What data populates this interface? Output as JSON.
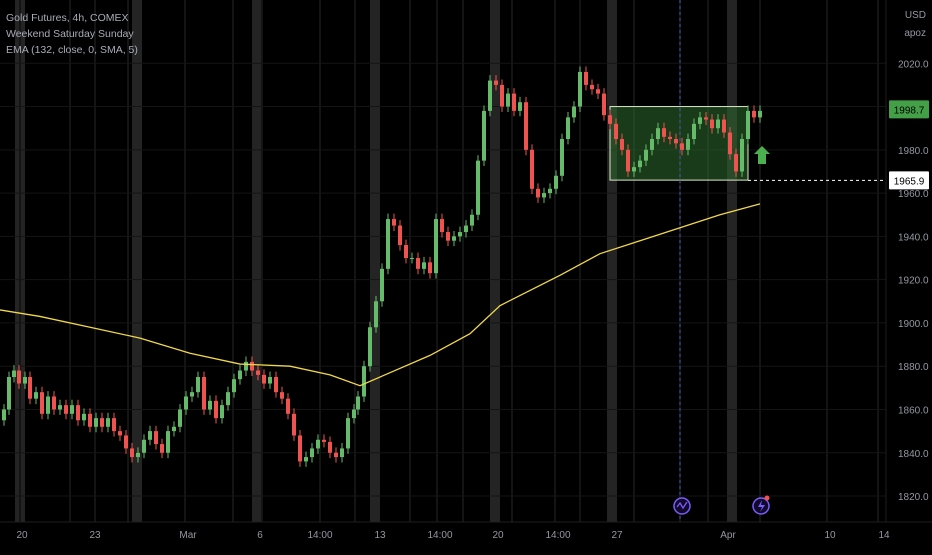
{
  "legend": {
    "symbol_line": "Gold Futures, 4h, COMEX",
    "indicator_1": "Weekend Saturday Sunday",
    "indicator_2": "EMA (132, close, 0, SMA, 5)"
  },
  "corner": {
    "currency": "USD",
    "scale_mode": "apoz"
  },
  "colors": {
    "background": "#000000",
    "up_candle": "#66bb6a",
    "down_candle": "#ef5350",
    "ema_line": "#f0d84a",
    "weekend_band": "#2a2a2a",
    "grid": "#141414",
    "box_fill": "#2e6b2e",
    "box_border": "#d8e8c8",
    "arrow": "#4caf50",
    "event_icon": "#7b5cff",
    "axis_text": "#9598a1"
  },
  "price_labels": {
    "current": "1998.7",
    "reference": "1965.9"
  },
  "icons": [
    "up-arrow-icon",
    "dividend-event-icon",
    "earnings-event-icon"
  ],
  "chart_data": {
    "type": "candlestick",
    "title": "Gold Futures, 4h, COMEX",
    "y_axis": {
      "ticks": [
        1820,
        1840,
        1860,
        1880,
        1900,
        1920,
        1940,
        1960,
        1980,
        2000,
        2020
      ],
      "tick_labels": [
        "1820.0",
        "1840.0",
        "1860.0",
        "1880.0",
        "1900.0",
        "1920.0",
        "1940.0",
        "1960.0",
        "1980.0",
        "2000.0",
        "2020.0"
      ],
      "range": [
        1808,
        2040
      ],
      "side": "right"
    },
    "x_axis": {
      "tick_labels": [
        "20",
        "23",
        "Mar",
        "6",
        "14:00",
        "13",
        "14:00",
        "20",
        "14:00",
        "27",
        "Apr",
        "10",
        "14"
      ],
      "grid": true
    },
    "price_series": [
      [
        0,
        1855
      ],
      [
        4,
        1860
      ],
      [
        9,
        1875
      ],
      [
        14,
        1878
      ],
      [
        19,
        1872
      ],
      [
        25,
        1875
      ],
      [
        30,
        1865
      ],
      [
        36,
        1868
      ],
      [
        42,
        1858
      ],
      [
        48,
        1866
      ],
      [
        54,
        1860
      ],
      [
        60,
        1862
      ],
      [
        66,
        1858
      ],
      [
        72,
        1862
      ],
      [
        78,
        1855
      ],
      [
        84,
        1858
      ],
      [
        90,
        1852
      ],
      [
        96,
        1856
      ],
      [
        102,
        1852
      ],
      [
        108,
        1856
      ],
      [
        114,
        1850
      ],
      [
        120,
        1848
      ],
      [
        126,
        1842
      ],
      [
        132,
        1838
      ],
      [
        138,
        1840
      ],
      [
        144,
        1846
      ],
      [
        150,
        1850
      ],
      [
        156,
        1844
      ],
      [
        162,
        1840
      ],
      [
        168,
        1850
      ],
      [
        174,
        1852
      ],
      [
        180,
        1860
      ],
      [
        186,
        1866
      ],
      [
        192,
        1868
      ],
      [
        198,
        1875
      ],
      [
        204,
        1860
      ],
      [
        210,
        1864
      ],
      [
        216,
        1856
      ],
      [
        222,
        1862
      ],
      [
        228,
        1868
      ],
      [
        234,
        1874
      ],
      [
        240,
        1878
      ],
      [
        246,
        1882
      ],
      [
        252,
        1878
      ],
      [
        258,
        1876
      ],
      [
        264,
        1872
      ],
      [
        270,
        1875
      ],
      [
        276,
        1868
      ],
      [
        282,
        1865
      ],
      [
        288,
        1858
      ],
      [
        294,
        1848
      ],
      [
        300,
        1836
      ],
      [
        306,
        1838
      ],
      [
        312,
        1842
      ],
      [
        318,
        1846
      ],
      [
        324,
        1845
      ],
      [
        330,
        1840
      ],
      [
        336,
        1838
      ],
      [
        342,
        1842
      ],
      [
        348,
        1856
      ],
      [
        354,
        1860
      ],
      [
        358,
        1866
      ],
      [
        364,
        1880
      ],
      [
        370,
        1898
      ],
      [
        376,
        1910
      ],
      [
        382,
        1925
      ],
      [
        388,
        1948
      ],
      [
        394,
        1945
      ],
      [
        400,
        1936
      ],
      [
        406,
        1930
      ],
      [
        412,
        1930
      ],
      [
        418,
        1925
      ],
      [
        424,
        1928
      ],
      [
        430,
        1923
      ],
      [
        436,
        1948
      ],
      [
        442,
        1942
      ],
      [
        448,
        1938
      ],
      [
        454,
        1940
      ],
      [
        460,
        1942
      ],
      [
        466,
        1945
      ],
      [
        472,
        1950
      ],
      [
        478,
        1975
      ],
      [
        484,
        1998
      ],
      [
        490,
        2012
      ],
      [
        496,
        2010
      ],
      [
        502,
        2000
      ],
      [
        508,
        2006
      ],
      [
        514,
        1998
      ],
      [
        520,
        2002
      ],
      [
        526,
        1980
      ],
      [
        532,
        1962
      ],
      [
        538,
        1958
      ],
      [
        544,
        1960
      ],
      [
        550,
        1962
      ],
      [
        556,
        1968
      ],
      [
        562,
        1985
      ],
      [
        568,
        1995
      ],
      [
        574,
        2000
      ],
      [
        580,
        2016
      ],
      [
        586,
        2010
      ],
      [
        592,
        2008
      ],
      [
        598,
        2006
      ],
      [
        604,
        1996
      ],
      [
        610,
        1992
      ],
      [
        616,
        1985
      ],
      [
        622,
        1980
      ],
      [
        628,
        1970
      ],
      [
        634,
        1972
      ],
      [
        640,
        1975
      ],
      [
        646,
        1980
      ],
      [
        652,
        1985
      ],
      [
        658,
        1990
      ],
      [
        664,
        1986
      ],
      [
        670,
        1985
      ],
      [
        676,
        1983
      ],
      [
        682,
        1980
      ],
      [
        688,
        1985
      ],
      [
        694,
        1992
      ],
      [
        700,
        1995
      ],
      [
        706,
        1994
      ],
      [
        712,
        1990
      ],
      [
        718,
        1994
      ],
      [
        724,
        1988
      ],
      [
        730,
        1978
      ],
      [
        736,
        1970
      ],
      [
        742,
        1985
      ],
      [
        748,
        1998
      ],
      [
        754,
        1995
      ],
      [
        760,
        1998
      ]
    ],
    "ema_line": {
      "name": "EMA (132, close, 0, SMA, 5)",
      "points": [
        [
          0,
          1906
        ],
        [
          40,
          1903
        ],
        [
          90,
          1898
        ],
        [
          140,
          1893
        ],
        [
          190,
          1886
        ],
        [
          240,
          1881
        ],
        [
          290,
          1880
        ],
        [
          330,
          1876
        ],
        [
          360,
          1871
        ],
        [
          390,
          1877
        ],
        [
          430,
          1885
        ],
        [
          470,
          1895
        ],
        [
          500,
          1908
        ],
        [
          530,
          1915
        ],
        [
          560,
          1922
        ],
        [
          600,
          1932
        ],
        [
          640,
          1938
        ],
        [
          680,
          1944
        ],
        [
          720,
          1950
        ],
        [
          760,
          1955
        ]
      ]
    },
    "highlight_box": {
      "x_range": [
        610,
        748
      ],
      "y_range": [
        1966,
        2000
      ]
    },
    "reference_line_value": 1965.9,
    "current_price": 1998.7,
    "weekend_bands_x": [
      15,
      132,
      252,
      370,
      490,
      607,
      727
    ],
    "session_lines_x": [
      20,
      70,
      95,
      128,
      185,
      233,
      262,
      320,
      355,
      410,
      437,
      463,
      512,
      555,
      580,
      634,
      680,
      708,
      760,
      827,
      878
    ]
  }
}
